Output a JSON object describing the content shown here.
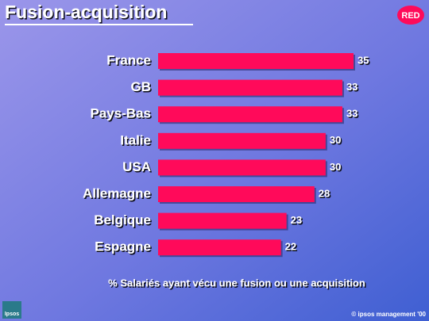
{
  "chart_data": {
    "type": "hbar",
    "title": "Fusion-acquisition",
    "badge": "RED",
    "categories": [
      "France",
      "GB",
      "Pays-Bas",
      "Italie",
      "USA",
      "Allemagne",
      "Belgique",
      "Espagne"
    ],
    "values": [
      35,
      33,
      33,
      30,
      30,
      28,
      23,
      22
    ],
    "color": "#ff0a5a",
    "note": "% Salariés ayant vécu une fusion ou une acquisition"
  },
  "footer": {
    "logo": "Ipsos",
    "copyright": "© ipsos management '00"
  }
}
